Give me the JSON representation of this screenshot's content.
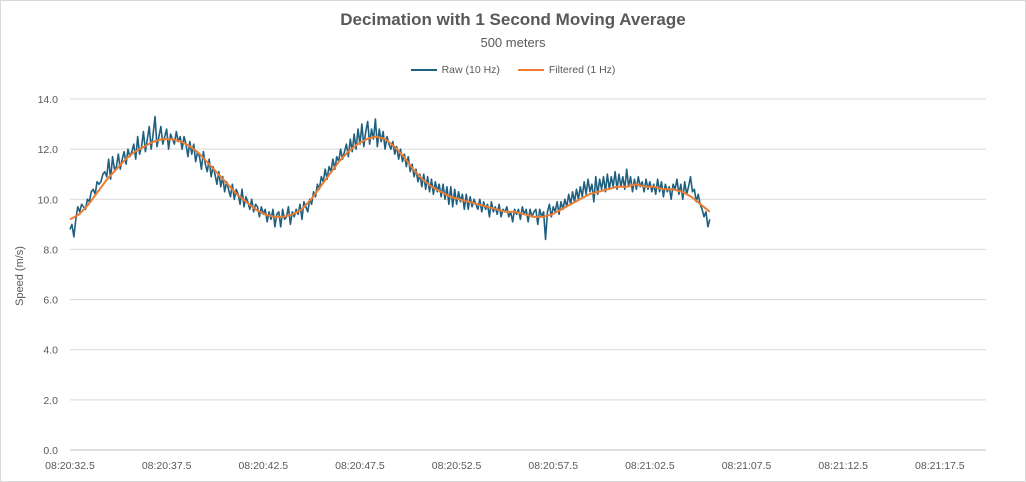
{
  "chart_data": {
    "type": "line",
    "title": "Decimation with 1 Second Moving Average",
    "subtitle": "500 meters",
    "xlabel": "",
    "ylabel": "Speed (m/s)",
    "ylim": [
      0,
      14
    ],
    "ytick_labels": [
      "0.0",
      "2.0",
      "4.0",
      "6.0",
      "8.0",
      "10.0",
      "12.0",
      "14.0"
    ],
    "xtick_labels": [
      "08:20:32.5",
      "08:20:37.5",
      "08:20:42.5",
      "08:20:47.5",
      "08:20:52.5",
      "08:20:57.5",
      "08:21:02.5",
      "08:21:07.5",
      "08:21:12.5",
      "08:21:17.5"
    ],
    "x_start": "08:20:32.5",
    "x_step_seconds": 0.1,
    "grid": "horizontal",
    "legend_position": "top-center",
    "series": [
      {
        "name": "Raw (10 Hz)",
        "color": "#1f5f7f",
        "values": [
          8.8,
          9.0,
          8.5,
          9.2,
          9.7,
          9.5,
          9.8,
          9.7,
          9.6,
          10.0,
          9.9,
          10.3,
          10.4,
          10.2,
          10.7,
          10.6,
          10.7,
          11.0,
          11.1,
          10.9,
          11.6,
          10.8,
          11.7,
          11.2,
          11.3,
          11.8,
          11.2,
          11.6,
          11.9,
          11.4,
          12.0,
          11.7,
          11.9,
          12.2,
          11.6,
          12.5,
          11.8,
          12.1,
          12.7,
          11.9,
          12.4,
          12.9,
          12.0,
          12.6,
          13.3,
          12.1,
          12.5,
          12.9,
          12.2,
          12.5,
          12.8,
          12.0,
          12.6,
          12.4,
          12.2,
          12.7,
          12.3,
          12.5,
          12.0,
          12.5,
          12.2,
          11.7,
          12.3,
          11.8,
          12.2,
          11.5,
          11.9,
          11.7,
          11.2,
          11.9,
          11.4,
          11.1,
          11.6,
          10.9,
          11.3,
          11.0,
          10.6,
          11.1,
          10.5,
          10.9,
          10.3,
          10.7,
          10.4,
          10.1,
          10.6,
          10.0,
          10.4,
          10.2,
          9.8,
          10.4,
          9.7,
          10.1,
          9.9,
          9.6,
          10.0,
          9.5,
          9.8,
          9.7,
          9.3,
          9.7,
          9.4,
          9.6,
          9.1,
          9.5,
          9.2,
          9.6,
          8.9,
          9.4,
          9.5,
          8.9,
          9.6,
          9.2,
          9.3,
          9.7,
          9.0,
          9.5,
          9.3,
          9.6,
          9.4,
          9.8,
          9.2,
          9.9,
          9.7,
          9.5,
          10.0,
          9.8,
          10.3,
          10.1,
          10.6,
          10.4,
          10.9,
          10.7,
          11.2,
          10.8,
          11.3,
          11.1,
          11.6,
          11.2,
          11.7,
          11.5,
          12.0,
          11.6,
          11.9,
          12.2,
          11.7,
          12.4,
          11.9,
          12.6,
          12.0,
          12.8,
          12.2,
          13.0,
          12.1,
          12.7,
          13.1,
          12.2,
          12.8,
          12.4,
          13.2,
          12.1,
          12.8,
          12.3,
          12.7,
          12.0,
          12.5,
          12.2,
          12.0,
          12.3,
          11.8,
          12.1,
          11.6,
          12.0,
          11.5,
          11.8,
          11.3,
          11.7,
          11.1,
          11.4,
          10.9,
          11.2,
          10.7,
          11.0,
          10.5,
          11.0,
          10.4,
          10.9,
          10.3,
          10.8,
          10.2,
          10.7,
          10.3,
          10.6,
          10.1,
          10.6,
          10.0,
          10.5,
          9.8,
          10.5,
          9.7,
          10.4,
          9.8,
          10.3,
          9.9,
          10.2,
          9.6,
          10.2,
          9.6,
          10.1,
          9.7,
          10.0,
          9.8,
          9.6,
          10.0,
          9.5,
          9.9,
          9.6,
          9.8,
          9.3,
          9.9,
          9.5,
          9.7,
          9.4,
          9.8,
          9.3,
          9.6,
          9.5,
          9.7,
          9.3,
          9.5,
          9.1,
          9.6,
          9.4,
          9.6,
          9.2,
          9.7,
          9.4,
          9.6,
          9.1,
          9.6,
          9.3,
          9.5,
          9.6,
          9.0,
          9.6,
          9.3,
          9.5,
          8.4,
          9.5,
          9.8,
          9.3,
          9.7,
          9.5,
          9.9,
          9.4,
          9.9,
          9.6,
          10.0,
          9.7,
          10.2,
          9.8,
          10.3,
          9.9,
          10.4,
          10.0,
          10.5,
          10.1,
          10.7,
          10.2,
          10.8,
          10.3,
          10.6,
          9.9,
          10.9,
          10.2,
          10.8,
          10.4,
          10.9,
          10.3,
          11.0,
          10.4,
          10.9,
          10.5,
          11.1,
          10.4,
          11.0,
          10.5,
          10.9,
          10.4,
          11.2,
          10.5,
          10.9,
          10.3,
          10.8,
          10.4,
          10.9,
          10.5,
          10.7,
          10.3,
          10.8,
          10.4,
          10.7,
          10.3,
          10.6,
          10.2,
          10.8,
          10.3,
          10.7,
          10.1,
          10.6,
          10.3,
          10.5,
          10.0,
          10.6,
          10.4,
          10.8,
          10.2,
          10.6,
          10.0,
          10.7,
          10.2,
          10.5,
          10.9,
          10.3,
          10.4,
          9.9,
          10.2,
          9.8,
          9.6,
          9.3,
          9.5,
          8.9,
          9.2
        ]
      },
      {
        "name": "Filtered (1 Hz)",
        "color": "#ed7d31",
        "values": [
          9.2,
          9.4,
          9.8,
          10.3,
          10.8,
          11.2,
          11.6,
          11.9,
          12.1,
          12.3,
          12.4,
          12.4,
          12.3,
          12.1,
          11.8,
          11.4,
          11.0,
          10.6,
          10.2,
          9.9,
          9.6,
          9.4,
          9.3,
          9.3,
          9.4,
          9.6,
          10.0,
          10.5,
          11.0,
          11.5,
          11.9,
          12.2,
          12.4,
          12.5,
          12.4,
          12.1,
          11.7,
          11.2,
          10.8,
          10.5,
          10.3,
          10.1,
          10.0,
          9.9,
          9.8,
          9.7,
          9.6,
          9.5,
          9.5,
          9.4,
          9.3,
          9.3,
          9.4,
          9.6,
          9.8,
          10.0,
          10.2,
          10.3,
          10.4,
          10.5,
          10.5,
          10.6,
          10.5,
          10.5,
          10.4,
          10.4,
          10.3,
          10.1,
          9.8,
          9.5
        ]
      }
    ]
  }
}
